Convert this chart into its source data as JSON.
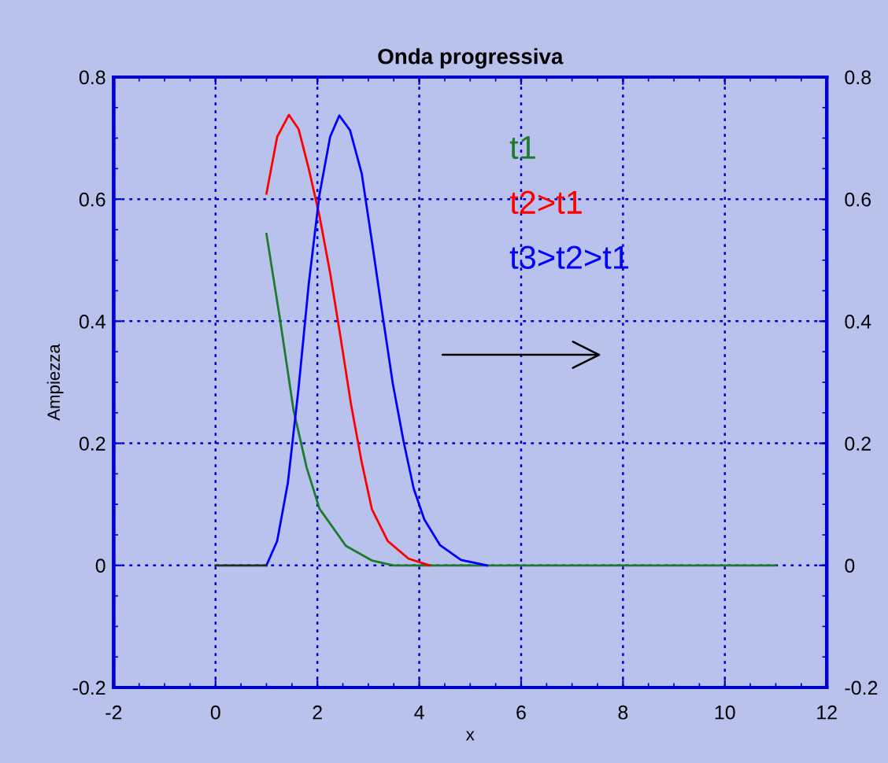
{
  "chart_data": {
    "type": "line",
    "title": "Onda progressiva",
    "xlabel": "x",
    "ylabel": "Ampiezza",
    "xlim": [
      -2,
      12
    ],
    "xticks": [
      -2,
      0,
      2,
      4,
      6,
      8,
      10,
      12
    ],
    "ylim": [
      -0.2,
      0.8
    ],
    "yticks": [
      -0.2,
      0,
      0.2,
      0.4,
      0.6,
      0.8
    ],
    "y2lim": [
      -0.2,
      0.8
    ],
    "y2ticks": [
      -0.2,
      0,
      0.2,
      0.4,
      0.6,
      0.8
    ],
    "grid": true,
    "legend": "top right",
    "marker": "none",
    "line_style": "solid",
    "series": [
      {
        "name": "t1",
        "color": "#1e7a2e",
        "x": [
          1,
          1.27,
          1.53,
          1.79,
          2.04,
          2.56,
          3.07,
          3.5,
          11
        ],
        "values": [
          0.543,
          0.401,
          0.255,
          0.16,
          0.093,
          0.032,
          0.008,
          0,
          0
        ]
      },
      {
        "name": "t2>t1",
        "color": "#ff0000",
        "x": [
          1,
          1.21,
          1.44,
          1.63,
          1.83,
          2.04,
          2.25,
          2.45,
          2.66,
          2.87,
          3.07,
          3.38,
          3.79,
          4.2
        ],
        "values": [
          0.609,
          0.702,
          0.738,
          0.715,
          0.65,
          0.573,
          0.479,
          0.376,
          0.264,
          0.169,
          0.092,
          0.04,
          0.011,
          0
        ]
      },
      {
        "name": "t3>t2>t1",
        "color": "#0000ff",
        "x": [
          1,
          1.21,
          1.42,
          1.63,
          1.83,
          2.04,
          2.25,
          2.43,
          2.64,
          2.87,
          3.07,
          3.28,
          3.48,
          3.69,
          3.89,
          4.1,
          4.41,
          4.82,
          5.33
        ],
        "values": [
          0,
          0.04,
          0.135,
          0.29,
          0.461,
          0.607,
          0.702,
          0.737,
          0.713,
          0.642,
          0.531,
          0.41,
          0.298,
          0.204,
          0.126,
          0.075,
          0.033,
          0.009,
          0
        ]
      },
      {
        "color": "#1a3320",
        "x": [
          0,
          1
        ],
        "values": [
          0,
          0
        ]
      }
    ]
  }
}
